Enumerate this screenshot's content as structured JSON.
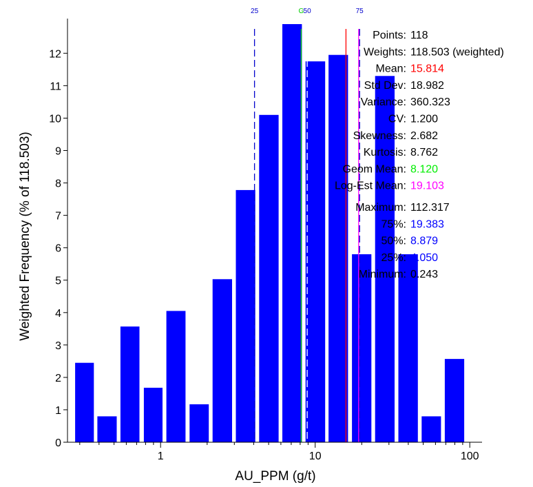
{
  "chart_data": {
    "type": "bar",
    "title": "",
    "xlabel": "AU_PPM (g/t)",
    "ylabel": "Weighted Frequency (% of 118.503)",
    "x_scale": "log",
    "xlim": [
      0.25,
      120
    ],
    "ylim": [
      0,
      13
    ],
    "x_ticks": [
      1,
      10,
      100
    ],
    "y_ticks": [
      0,
      1,
      2,
      3,
      4,
      5,
      6,
      7,
      8,
      9,
      10,
      11,
      12
    ],
    "bar_color": "#0000ff",
    "bins": [
      {
        "x0": 0.28,
        "x1": 0.37,
        "value": 2.45
      },
      {
        "x0": 0.39,
        "x1": 0.52,
        "value": 0.8
      },
      {
        "x0": 0.55,
        "x1": 0.73,
        "value": 3.57
      },
      {
        "x0": 0.78,
        "x1": 1.03,
        "value": 1.68
      },
      {
        "x0": 1.09,
        "x1": 1.45,
        "value": 4.05
      },
      {
        "x0": 1.54,
        "x1": 2.05,
        "value": 1.17
      },
      {
        "x0": 2.17,
        "x1": 2.9,
        "value": 5.03
      },
      {
        "x0": 3.07,
        "x1": 4.1,
        "value": 7.78
      },
      {
        "x0": 4.34,
        "x1": 5.8,
        "value": 10.1
      },
      {
        "x0": 6.13,
        "x1": 8.2,
        "value": 12.9
      },
      {
        "x0": 8.66,
        "x1": 11.6,
        "value": 11.75
      },
      {
        "x0": 12.2,
        "x1": 16.3,
        "value": 11.95
      },
      {
        "x0": 17.3,
        "x1": 23.1,
        "value": 5.8
      },
      {
        "x0": 24.4,
        "x1": 32.6,
        "value": 11.3
      },
      {
        "x0": 34.5,
        "x1": 46.1,
        "value": 5.8
      },
      {
        "x0": 48.8,
        "x1": 65.1,
        "value": 0.8
      },
      {
        "x0": 68.9,
        "x1": 92.0,
        "value": 2.57
      }
    ],
    "reference_lines": [
      {
        "name": "25",
        "x": 4.05,
        "color": "#0000cc",
        "style": "dashed",
        "label": "25"
      },
      {
        "name": "geom-mean",
        "x": 8.12,
        "color": "#00cc00",
        "style": "solid",
        "label": "G"
      },
      {
        "name": "50",
        "x": 8.879,
        "color": "#ffffff",
        "style": "dashed",
        "label": "50"
      },
      {
        "name": "mean",
        "x": 15.814,
        "color": "#ff0000",
        "style": "solid",
        "label": ""
      },
      {
        "name": "log-est-mean",
        "x": 19.103,
        "color": "#ff00ff",
        "style": "solid",
        "label": ""
      },
      {
        "name": "75",
        "x": 19.383,
        "color": "#0000cc",
        "style": "dashed",
        "label": "75"
      }
    ],
    "stats": [
      {
        "label": "Points:",
        "value": "118",
        "color": "#000000",
        "gap": 0
      },
      {
        "label": "Weights:",
        "value": "118.503 (weighted)",
        "color": "#000000",
        "gap": 0
      },
      {
        "label": "Mean:",
        "value": "15.814",
        "color": "#ff0000",
        "gap": 0
      },
      {
        "label": "Std Dev:",
        "value": "18.982",
        "color": "#000000",
        "gap": 0
      },
      {
        "label": "Variance:",
        "value": "360.323",
        "color": "#000000",
        "gap": 0
      },
      {
        "label": "CV:",
        "value": "1.200",
        "color": "#000000",
        "gap": 0
      },
      {
        "label": "Skewness:",
        "value": "2.682",
        "color": "#000000",
        "gap": 0
      },
      {
        "label": "Kurtosis:",
        "value": "8.762",
        "color": "#000000",
        "gap": 0
      },
      {
        "label": "Geom Mean:",
        "value": "8.120",
        "color": "#00ee00",
        "gap": 0
      },
      {
        "label": "Log-Est Mean:",
        "value": "19.103",
        "color": "#ff00ff",
        "gap": 0
      },
      {
        "label": "Maximum:",
        "value": "112.317",
        "color": "#000000",
        "gap": 1
      },
      {
        "label": "75%:",
        "value": "19.383",
        "color": "#0000ff",
        "gap": 0
      },
      {
        "label": "50%:",
        "value": "8.879",
        "color": "#0000ff",
        "gap": 0
      },
      {
        "label": "25%:",
        "value": "4.050",
        "color": "#0000ff",
        "gap": 0
      },
      {
        "label": "Minimum:",
        "value": "0.243",
        "color": "#000000",
        "gap": 0
      }
    ]
  }
}
